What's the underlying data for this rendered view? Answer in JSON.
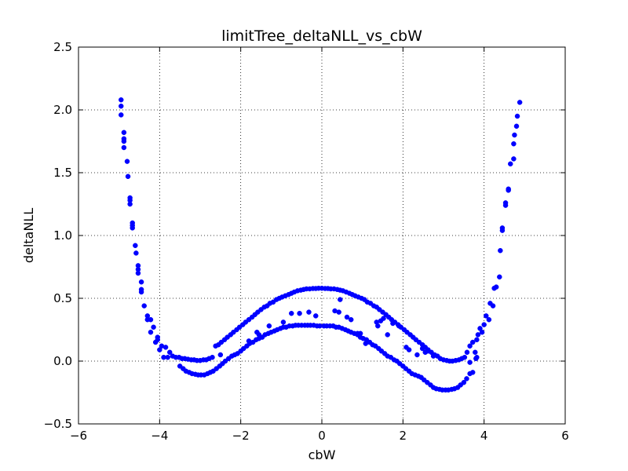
{
  "chart_data": {
    "type": "scatter",
    "title": "limitTree_deltaNLL_vs_cbW",
    "xlabel": "cbW",
    "ylabel": "deltaNLL",
    "xlim": [
      -6,
      6
    ],
    "ylim": [
      -0.5,
      2.5
    ],
    "x_ticks": [
      -6,
      -4,
      -2,
      0,
      2,
      4,
      6
    ],
    "y_ticks": [
      -0.5,
      0.0,
      0.5,
      1.0,
      1.5,
      2.0,
      2.5
    ],
    "x_tick_labels": [
      "−6",
      "−4",
      "−2",
      "0",
      "2",
      "4",
      "6"
    ],
    "y_tick_labels": [
      "−0.5",
      "0.0",
      "0.5",
      "1.0",
      "1.5",
      "2.0",
      "2.5"
    ],
    "grid": true,
    "marker_color": "#0000ff",
    "series": [
      {
        "points": [
          [
            -4.95,
            2.08
          ],
          [
            -4.95,
            2.03
          ],
          [
            -4.95,
            1.96
          ],
          [
            -4.88,
            1.82
          ],
          [
            -4.88,
            1.77
          ],
          [
            -4.88,
            1.75
          ],
          [
            -4.88,
            1.7
          ],
          [
            -4.8,
            1.59
          ],
          [
            -4.78,
            1.47
          ],
          [
            -4.73,
            1.3
          ],
          [
            -4.73,
            1.28
          ],
          [
            -4.73,
            1.25
          ],
          [
            -4.67,
            1.1
          ],
          [
            -4.67,
            1.08
          ],
          [
            -4.67,
            1.06
          ],
          [
            -4.6,
            0.92
          ],
          [
            -4.58,
            0.86
          ],
          [
            -4.53,
            0.76
          ],
          [
            -4.53,
            0.73
          ],
          [
            -4.53,
            0.7
          ],
          [
            -4.45,
            0.63
          ],
          [
            -4.45,
            0.57
          ],
          [
            -4.45,
            0.55
          ],
          [
            -4.38,
            0.44
          ],
          [
            -4.3,
            0.36
          ],
          [
            -4.3,
            0.33
          ],
          [
            -4.22,
            0.33
          ],
          [
            -4.22,
            0.23
          ],
          [
            -4.15,
            0.27
          ],
          [
            -4.1,
            0.15
          ],
          [
            -4.05,
            0.19
          ],
          [
            -4.05,
            0.17
          ],
          [
            -4.0,
            0.09
          ],
          [
            -3.95,
            0.12
          ],
          [
            -3.9,
            0.03
          ],
          [
            -3.85,
            0.11
          ],
          [
            -3.8,
            0.03
          ],
          [
            -3.75,
            0.07
          ],
          [
            -3.68,
            0.04
          ],
          [
            -3.6,
            0.03
          ],
          [
            -3.52,
            0.03
          ],
          [
            -3.45,
            0.02
          ],
          [
            -3.38,
            0.02
          ],
          [
            -3.3,
            0.015
          ],
          [
            -3.22,
            0.01
          ],
          [
            -3.15,
            0.01
          ],
          [
            -3.08,
            0.005
          ],
          [
            -3.0,
            0.005
          ],
          [
            -2.92,
            0.01
          ],
          [
            -2.85,
            0.01
          ],
          [
            -2.78,
            0.02
          ],
          [
            -2.7,
            0.03
          ],
          [
            -2.62,
            0.12
          ],
          [
            -2.55,
            0.13
          ],
          [
            -2.48,
            0.15
          ],
          [
            -2.4,
            0.17
          ],
          [
            -2.33,
            0.19
          ],
          [
            -2.25,
            0.21
          ],
          [
            -2.18,
            0.23
          ],
          [
            -2.1,
            0.25
          ],
          [
            -2.03,
            0.27
          ],
          [
            -1.95,
            0.29
          ],
          [
            -1.88,
            0.31
          ],
          [
            -1.8,
            0.33
          ],
          [
            -1.72,
            0.35
          ],
          [
            -1.65,
            0.37
          ],
          [
            -1.58,
            0.39
          ],
          [
            -1.5,
            0.41
          ],
          [
            -1.42,
            0.43
          ],
          [
            -1.35,
            0.44
          ],
          [
            -1.28,
            0.46
          ],
          [
            -1.2,
            0.47
          ],
          [
            -1.12,
            0.49
          ],
          [
            -1.05,
            0.5
          ],
          [
            -0.98,
            0.51
          ],
          [
            -0.9,
            0.52
          ],
          [
            -0.82,
            0.53
          ],
          [
            -0.75,
            0.54
          ],
          [
            -0.68,
            0.55
          ],
          [
            -0.6,
            0.56
          ],
          [
            -0.52,
            0.565
          ],
          [
            -0.45,
            0.57
          ],
          [
            -0.38,
            0.575
          ],
          [
            -0.3,
            0.575
          ],
          [
            -0.22,
            0.578
          ],
          [
            -0.15,
            0.578
          ],
          [
            -0.08,
            0.58
          ],
          [
            0.0,
            0.58
          ],
          [
            0.08,
            0.578
          ],
          [
            0.15,
            0.578
          ],
          [
            0.22,
            0.575
          ],
          [
            0.3,
            0.575
          ],
          [
            0.38,
            0.57
          ],
          [
            0.45,
            0.565
          ],
          [
            0.52,
            0.56
          ],
          [
            0.6,
            0.55
          ],
          [
            0.68,
            0.54
          ],
          [
            0.75,
            0.53
          ],
          [
            0.82,
            0.52
          ],
          [
            0.9,
            0.51
          ],
          [
            0.98,
            0.5
          ],
          [
            1.05,
            0.49
          ],
          [
            1.12,
            0.47
          ],
          [
            1.2,
            0.46
          ],
          [
            1.28,
            0.44
          ],
          [
            1.35,
            0.43
          ],
          [
            1.42,
            0.41
          ],
          [
            1.5,
            0.39
          ],
          [
            1.58,
            0.37
          ],
          [
            1.65,
            0.35
          ],
          [
            1.72,
            0.33
          ],
          [
            1.8,
            0.31
          ],
          [
            1.88,
            0.29
          ],
          [
            1.95,
            0.27
          ],
          [
            2.03,
            0.25
          ],
          [
            2.1,
            0.23
          ],
          [
            2.18,
            0.21
          ],
          [
            2.25,
            0.19
          ],
          [
            2.32,
            0.17
          ],
          [
            2.4,
            0.15
          ],
          [
            2.48,
            0.13
          ],
          [
            2.55,
            0.11
          ],
          [
            2.62,
            0.09
          ],
          [
            2.7,
            0.07
          ],
          [
            2.78,
            0.05
          ],
          [
            2.85,
            0.04
          ],
          [
            2.92,
            0.02
          ],
          [
            3.0,
            0.01
          ],
          [
            3.08,
            0.005
          ],
          [
            3.15,
            0.0
          ],
          [
            3.22,
            0.0
          ],
          [
            3.3,
            0.005
          ],
          [
            3.38,
            0.01
          ],
          [
            3.45,
            0.02
          ],
          [
            3.52,
            0.03
          ],
          [
            3.58,
            0.07
          ],
          [
            3.65,
            0.12
          ],
          [
            3.72,
            0.15
          ],
          [
            3.8,
            0.02
          ],
          [
            3.82,
            0.03
          ],
          [
            3.85,
            0.21
          ],
          [
            3.9,
            0.26
          ],
          [
            3.95,
            0.23
          ],
          [
            4.0,
            0.29
          ],
          [
            4.05,
            0.36
          ],
          [
            4.12,
            0.33
          ],
          [
            4.15,
            0.46
          ],
          [
            4.22,
            0.44
          ],
          [
            4.25,
            0.58
          ],
          [
            4.3,
            0.59
          ],
          [
            4.38,
            0.67
          ],
          [
            4.4,
            0.88
          ],
          [
            4.45,
            1.06
          ],
          [
            4.45,
            1.04
          ],
          [
            4.53,
            1.26
          ],
          [
            4.53,
            1.24
          ],
          [
            4.6,
            1.37
          ],
          [
            4.6,
            1.36
          ],
          [
            4.65,
            1.57
          ],
          [
            4.73,
            1.61
          ],
          [
            4.73,
            1.73
          ],
          [
            4.75,
            1.8
          ],
          [
            4.8,
            1.87
          ],
          [
            4.82,
            1.95
          ],
          [
            4.88,
            2.06
          ],
          [
            -3.5,
            -0.04
          ],
          [
            -3.42,
            -0.06
          ],
          [
            -3.35,
            -0.08
          ],
          [
            -3.27,
            -0.09
          ],
          [
            -3.2,
            -0.1
          ],
          [
            -3.12,
            -0.105
          ],
          [
            -3.05,
            -0.11
          ],
          [
            -2.98,
            -0.11
          ],
          [
            -2.9,
            -0.11
          ],
          [
            -2.82,
            -0.1
          ],
          [
            -2.75,
            -0.09
          ],
          [
            -2.68,
            -0.08
          ],
          [
            -2.6,
            -0.06
          ],
          [
            -2.52,
            -0.04
          ],
          [
            -2.45,
            -0.02
          ],
          [
            -2.38,
            0.0
          ],
          [
            -2.3,
            0.02
          ],
          [
            -2.22,
            0.04
          ],
          [
            -2.15,
            0.05
          ],
          [
            -2.08,
            0.06
          ],
          [
            -2.0,
            0.08
          ],
          [
            -1.93,
            0.1
          ],
          [
            -1.85,
            0.12
          ],
          [
            -1.78,
            0.14
          ],
          [
            -1.7,
            0.15
          ],
          [
            -1.62,
            0.17
          ],
          [
            -1.55,
            0.18
          ],
          [
            -1.47,
            0.19
          ],
          [
            -1.4,
            0.21
          ],
          [
            -1.32,
            0.22
          ],
          [
            -1.25,
            0.23
          ],
          [
            -1.17,
            0.24
          ],
          [
            -1.1,
            0.25
          ],
          [
            -1.02,
            0.26
          ],
          [
            -0.95,
            0.27
          ],
          [
            -0.88,
            0.27
          ],
          [
            -0.8,
            0.28
          ],
          [
            -0.72,
            0.28
          ],
          [
            -0.65,
            0.285
          ],
          [
            -0.58,
            0.285
          ],
          [
            -0.5,
            0.285
          ],
          [
            -0.42,
            0.285
          ],
          [
            -0.35,
            0.285
          ],
          [
            -0.28,
            0.285
          ],
          [
            -0.2,
            0.285
          ],
          [
            -0.12,
            0.28
          ],
          [
            -0.05,
            0.28
          ],
          [
            0.05,
            0.28
          ],
          [
            0.12,
            0.28
          ],
          [
            0.2,
            0.28
          ],
          [
            0.28,
            0.28
          ],
          [
            0.35,
            0.27
          ],
          [
            0.42,
            0.27
          ],
          [
            0.5,
            0.26
          ],
          [
            0.58,
            0.25
          ],
          [
            0.65,
            0.24
          ],
          [
            0.72,
            0.23
          ],
          [
            0.8,
            0.22
          ],
          [
            0.88,
            0.21
          ],
          [
            0.95,
            0.19
          ],
          [
            1.02,
            0.18
          ],
          [
            1.1,
            0.17
          ],
          [
            1.18,
            0.15
          ],
          [
            1.25,
            0.13
          ],
          [
            1.32,
            0.12
          ],
          [
            1.4,
            0.1
          ],
          [
            1.47,
            0.08
          ],
          [
            1.55,
            0.06
          ],
          [
            1.62,
            0.04
          ],
          [
            1.7,
            0.03
          ],
          [
            1.78,
            0.01
          ],
          [
            1.85,
            0.0
          ],
          [
            1.92,
            -0.02
          ],
          [
            2.0,
            -0.04
          ],
          [
            2.07,
            -0.06
          ],
          [
            2.15,
            -0.08
          ],
          [
            2.22,
            -0.1
          ],
          [
            2.3,
            -0.11
          ],
          [
            2.38,
            -0.12
          ],
          [
            2.45,
            -0.13
          ],
          [
            2.52,
            -0.15
          ],
          [
            2.6,
            -0.17
          ],
          [
            2.68,
            -0.19
          ],
          [
            2.75,
            -0.21
          ],
          [
            2.82,
            -0.22
          ],
          [
            2.9,
            -0.225
          ],
          [
            2.97,
            -0.23
          ],
          [
            3.05,
            -0.23
          ],
          [
            3.12,
            -0.23
          ],
          [
            3.2,
            -0.225
          ],
          [
            3.27,
            -0.22
          ],
          [
            3.35,
            -0.21
          ],
          [
            3.42,
            -0.19
          ],
          [
            3.5,
            -0.17
          ],
          [
            3.57,
            -0.14
          ],
          [
            3.65,
            -0.1
          ],
          [
            3.72,
            -0.09
          ],
          [
            -2.5,
            0.05
          ],
          [
            -1.8,
            0.16
          ],
          [
            -1.6,
            0.23
          ],
          [
            -1.55,
            0.21
          ],
          [
            -1.3,
            0.28
          ],
          [
            -0.95,
            0.31
          ],
          [
            -0.75,
            0.38
          ],
          [
            -0.55,
            0.38
          ],
          [
            -0.32,
            0.39
          ],
          [
            -0.15,
            0.36
          ],
          [
            0.32,
            0.4
          ],
          [
            0.42,
            0.39
          ],
          [
            0.45,
            0.49
          ],
          [
            0.62,
            0.35
          ],
          [
            0.72,
            0.33
          ],
          [
            0.88,
            0.22
          ],
          [
            0.95,
            0.22
          ],
          [
            1.08,
            0.14
          ],
          [
            1.35,
            0.31
          ],
          [
            1.38,
            0.28
          ],
          [
            1.45,
            0.32
          ],
          [
            1.52,
            0.34
          ],
          [
            1.62,
            0.21
          ],
          [
            1.75,
            0.3
          ],
          [
            1.9,
            0.28
          ],
          [
            2.08,
            0.11
          ],
          [
            2.15,
            0.09
          ],
          [
            2.35,
            0.05
          ],
          [
            2.48,
            0.1
          ],
          [
            2.55,
            0.07
          ],
          [
            2.62,
            0.08
          ],
          [
            2.75,
            0.04
          ],
          [
            3.65,
            -0.01
          ],
          [
            3.78,
            0.07
          ],
          [
            3.82,
            0.17
          ]
        ]
      }
    ]
  }
}
